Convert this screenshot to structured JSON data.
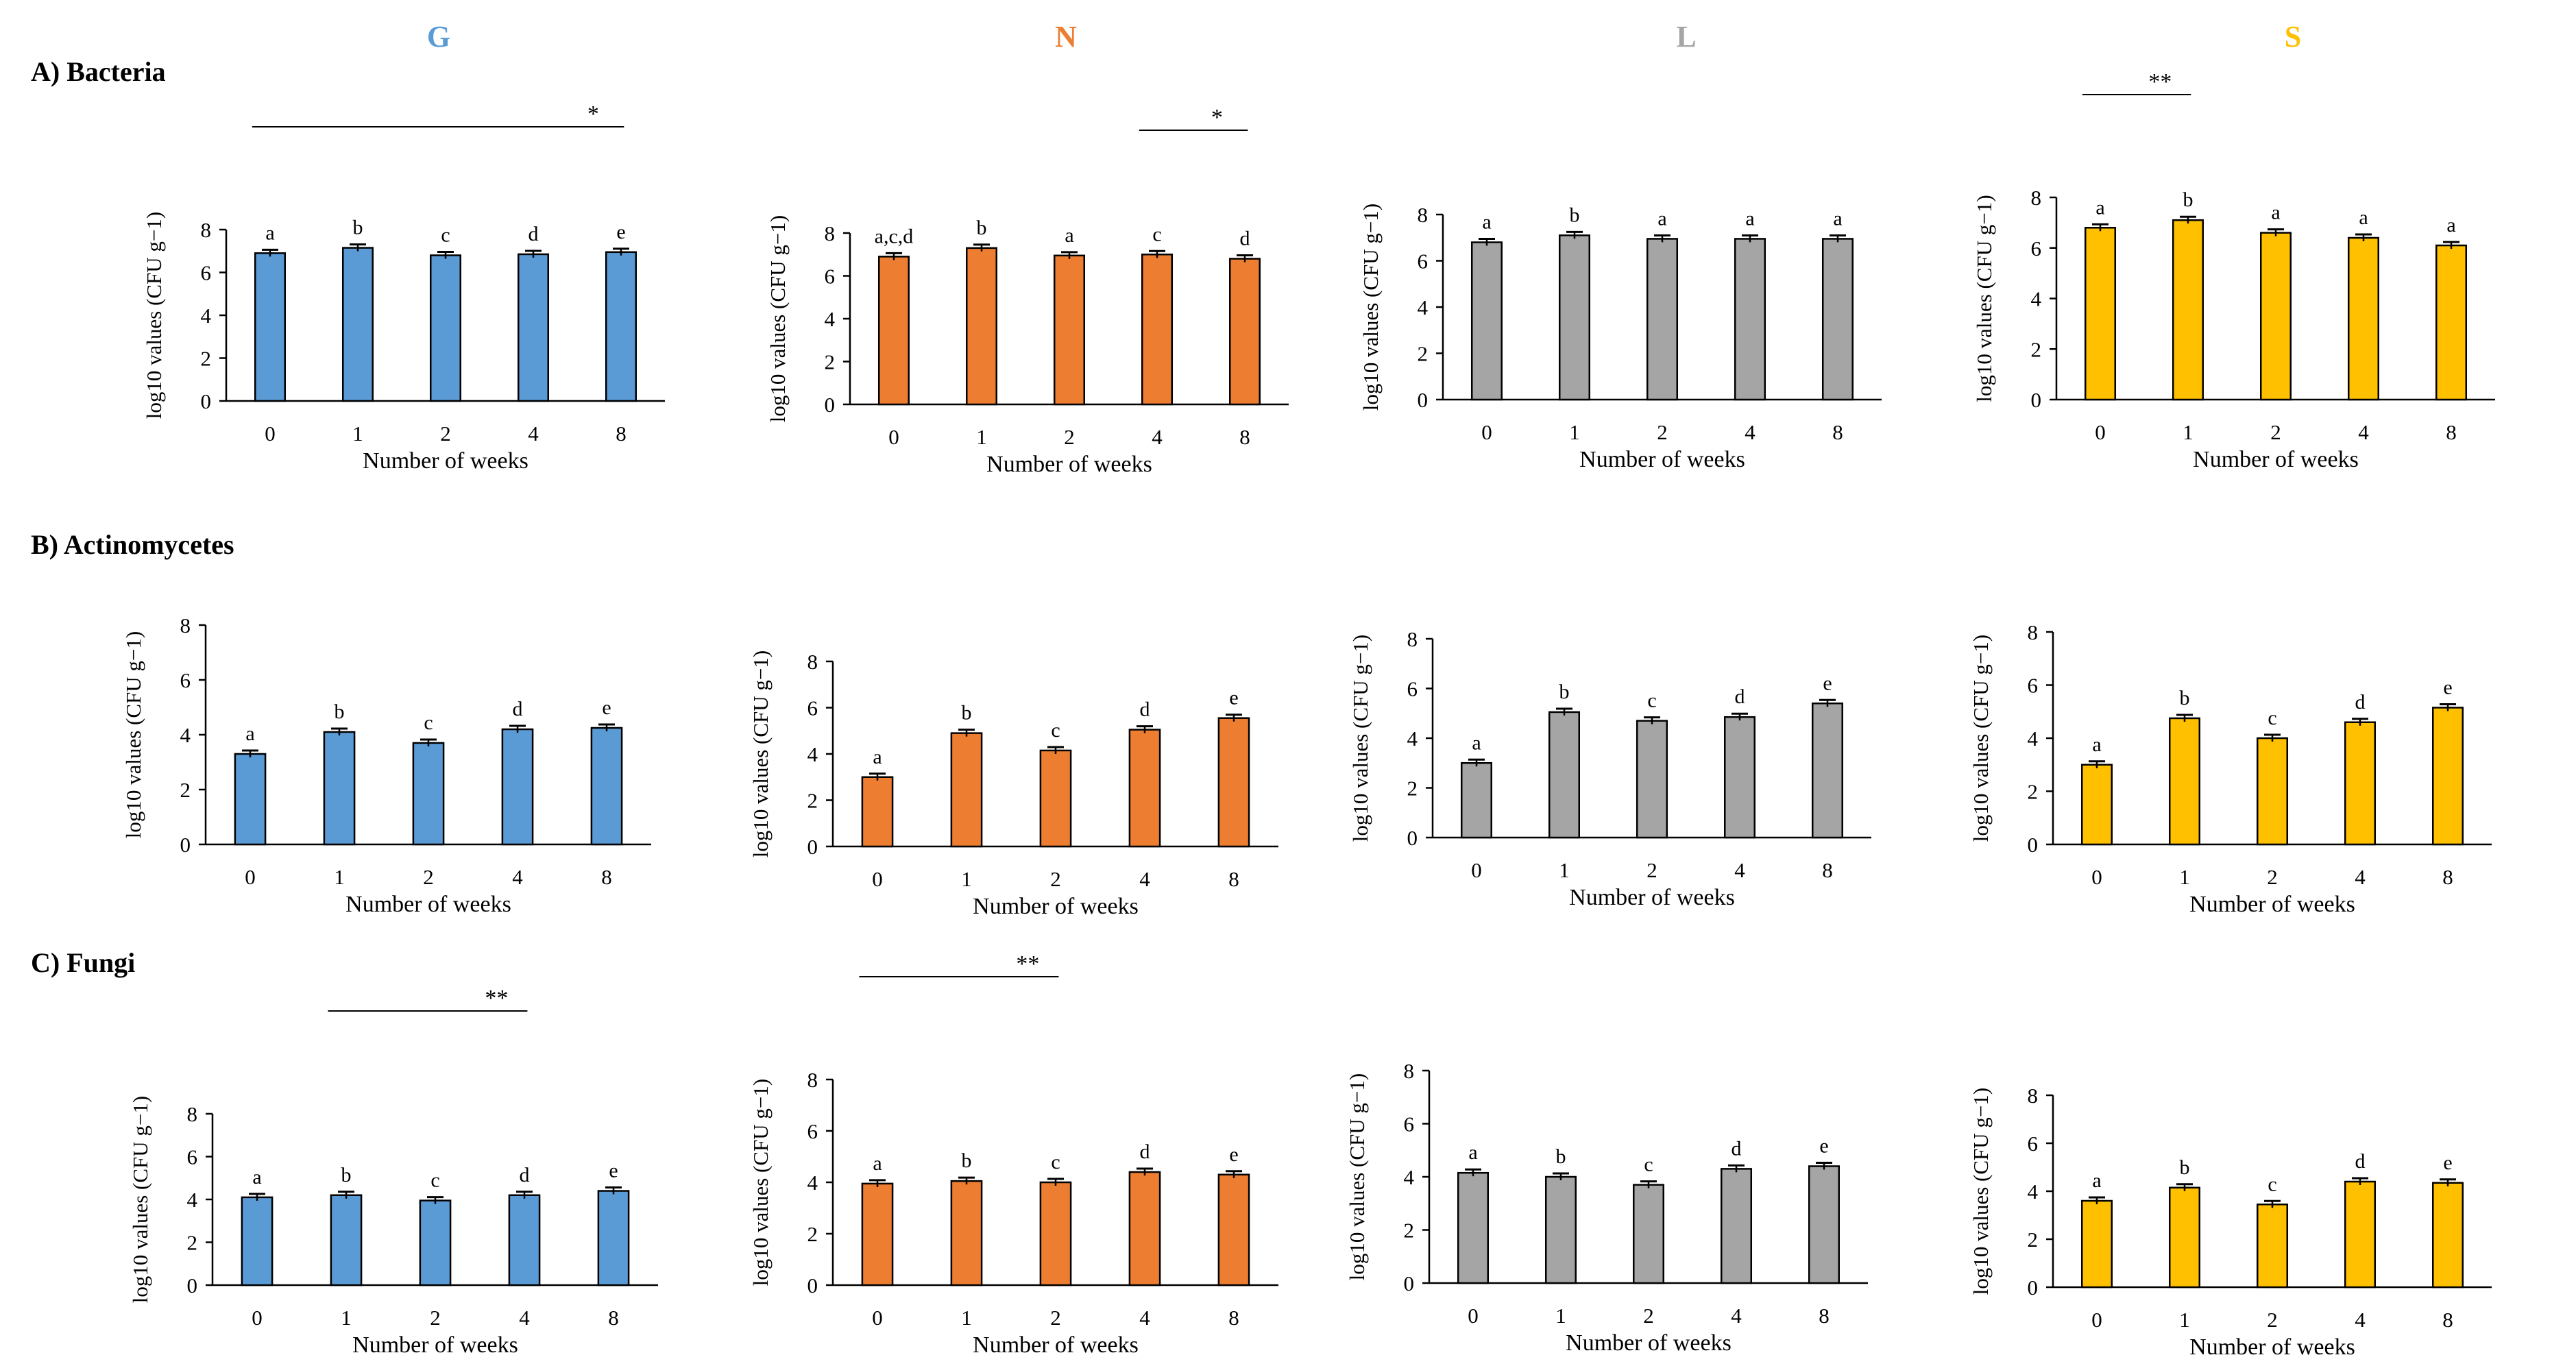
{
  "columns": [
    {
      "label": "G",
      "color": "#5B9BD5"
    },
    {
      "label": "N",
      "color": "#ED7D31"
    },
    {
      "label": "L",
      "color": "#A5A5A5"
    },
    {
      "label": "S",
      "color": "#FFC000"
    }
  ],
  "rows": [
    {
      "label": "A) Bacteria"
    },
    {
      "label": "B) Actinomycetes"
    },
    {
      "label": "C) Fungi"
    }
  ],
  "chart_data": [
    {
      "type": "bar",
      "row": 0,
      "col": 0,
      "series_color": "#5B9BD5",
      "categories": [
        "0",
        "1",
        "2",
        "4",
        "8"
      ],
      "values": [
        6.9,
        7.15,
        6.8,
        6.85,
        6.95
      ],
      "letters": [
        "a",
        "b",
        "c",
        "d",
        "e"
      ],
      "ylim": [
        0,
        8
      ],
      "yticks": [
        0,
        2,
        4,
        6,
        8
      ],
      "xlabel": "Number of weeks",
      "ylabel": "log10 values (CFU g−1)",
      "significance": {
        "from": 0,
        "to": 4,
        "label": "*"
      }
    },
    {
      "type": "bar",
      "row": 0,
      "col": 1,
      "series_color": "#ED7D31",
      "categories": [
        "0",
        "1",
        "2",
        "4",
        "8"
      ],
      "values": [
        6.9,
        7.3,
        6.95,
        7.0,
        6.8
      ],
      "letters": [
        "a,c,d",
        "b",
        "a",
        "c",
        "d"
      ],
      "ylim": [
        0,
        8
      ],
      "yticks": [
        0,
        2,
        4,
        6,
        8
      ],
      "xlabel": "Number of weeks",
      "ylabel": "log10 values (CFU g−1)",
      "significance": {
        "from": 3,
        "to": 4,
        "label": "*"
      }
    },
    {
      "type": "bar",
      "row": 0,
      "col": 2,
      "series_color": "#A5A5A5",
      "categories": [
        "0",
        "1",
        "2",
        "4",
        "8"
      ],
      "values": [
        6.8,
        7.1,
        6.95,
        6.95,
        6.95
      ],
      "letters": [
        "a",
        "b",
        "a",
        "a",
        "a"
      ],
      "ylim": [
        0,
        8
      ],
      "yticks": [
        0,
        2,
        4,
        6,
        8
      ],
      "xlabel": "Number of weeks",
      "ylabel": "log10 values (CFU g−1)",
      "significance": null
    },
    {
      "type": "bar",
      "row": 0,
      "col": 3,
      "series_color": "#FFC000",
      "categories": [
        "0",
        "1",
        "2",
        "4",
        "8"
      ],
      "values": [
        6.8,
        7.1,
        6.6,
        6.4,
        6.1
      ],
      "letters": [
        "a",
        "b",
        "a",
        "a",
        "a"
      ],
      "ylim": [
        0,
        8
      ],
      "yticks": [
        0,
        2,
        4,
        6,
        8
      ],
      "xlabel": "Number of weeks",
      "ylabel": "log10 values (CFU g−1)",
      "significance": {
        "from": 0,
        "to": 1,
        "label": "**"
      }
    },
    {
      "type": "bar",
      "row": 1,
      "col": 0,
      "series_color": "#5B9BD5",
      "categories": [
        "0",
        "1",
        "2",
        "4",
        "8"
      ],
      "values": [
        3.3,
        4.1,
        3.7,
        4.2,
        4.25
      ],
      "letters": [
        "a",
        "b",
        "c",
        "d",
        "e"
      ],
      "ylim": [
        0,
        8
      ],
      "yticks": [
        0,
        2,
        4,
        6,
        8
      ],
      "xlabel": "Number of weeks",
      "ylabel": "log10 values (CFU g−1)",
      "significance": null
    },
    {
      "type": "bar",
      "row": 1,
      "col": 1,
      "series_color": "#ED7D31",
      "categories": [
        "0",
        "1",
        "2",
        "4",
        "8"
      ],
      "values": [
        3.0,
        4.9,
        4.15,
        5.05,
        5.55
      ],
      "letters": [
        "a",
        "b",
        "c",
        "d",
        "e"
      ],
      "ylim": [
        0,
        8
      ],
      "yticks": [
        0,
        2,
        4,
        6,
        8
      ],
      "xlabel": "Number of weeks",
      "ylabel": "log10 values (CFU g−1)",
      "significance": null
    },
    {
      "type": "bar",
      "row": 1,
      "col": 2,
      "series_color": "#A5A5A5",
      "categories": [
        "0",
        "1",
        "2",
        "4",
        "8"
      ],
      "values": [
        3.0,
        5.05,
        4.7,
        4.85,
        5.4
      ],
      "letters": [
        "a",
        "b",
        "c",
        "d",
        "e"
      ],
      "ylim": [
        0,
        8
      ],
      "yticks": [
        0,
        2,
        4,
        6,
        8
      ],
      "xlabel": "Number of weeks",
      "ylabel": "log10 values (CFU g−1)",
      "significance": null
    },
    {
      "type": "bar",
      "row": 1,
      "col": 3,
      "series_color": "#FFC000",
      "categories": [
        "0",
        "1",
        "2",
        "4",
        "8"
      ],
      "values": [
        3.0,
        4.75,
        4.0,
        4.6,
        5.15
      ],
      "letters": [
        "a",
        "b",
        "c",
        "d",
        "e"
      ],
      "ylim": [
        0,
        8
      ],
      "yticks": [
        0,
        2,
        4,
        6,
        8
      ],
      "xlabel": "Number of weeks",
      "ylabel": "log10 values (CFU g−1)",
      "significance": null
    },
    {
      "type": "bar",
      "row": 2,
      "col": 0,
      "series_color": "#5B9BD5",
      "categories": [
        "0",
        "1",
        "2",
        "4",
        "8"
      ],
      "values": [
        4.1,
        4.2,
        3.95,
        4.2,
        4.4
      ],
      "letters": [
        "a",
        "b",
        "c",
        "d",
        "e"
      ],
      "ylim": [
        0,
        8
      ],
      "yticks": [
        0,
        2,
        4,
        6,
        8
      ],
      "xlabel": "Number of weeks",
      "ylabel": "log10 values (CFU g−1)",
      "significance": {
        "from": 1,
        "to": 3,
        "label": "**"
      }
    },
    {
      "type": "bar",
      "row": 2,
      "col": 1,
      "series_color": "#ED7D31",
      "categories": [
        "0",
        "1",
        "2",
        "4",
        "8"
      ],
      "values": [
        3.95,
        4.05,
        4.0,
        4.4,
        4.3
      ],
      "letters": [
        "a",
        "b",
        "c",
        "d",
        "e"
      ],
      "ylim": [
        0,
        8
      ],
      "yticks": [
        0,
        2,
        4,
        6,
        8
      ],
      "xlabel": "Number of weeks",
      "ylabel": "log10 values (CFU g−1)",
      "significance": {
        "from": 0,
        "to": 2,
        "label": "**"
      }
    },
    {
      "type": "bar",
      "row": 2,
      "col": 2,
      "series_color": "#A5A5A5",
      "categories": [
        "0",
        "1",
        "2",
        "4",
        "8"
      ],
      "values": [
        4.15,
        4.0,
        3.7,
        4.3,
        4.4
      ],
      "letters": [
        "a",
        "b",
        "c",
        "d",
        "e"
      ],
      "ylim": [
        0,
        8
      ],
      "yticks": [
        0,
        2,
        4,
        6,
        8
      ],
      "xlabel": "Number of weeks",
      "ylabel": "log10 values (CFU g−1)",
      "significance": null
    },
    {
      "type": "bar",
      "row": 2,
      "col": 3,
      "series_color": "#FFC000",
      "categories": [
        "0",
        "1",
        "2",
        "4",
        "8"
      ],
      "values": [
        3.6,
        4.15,
        3.45,
        4.4,
        4.35
      ],
      "letters": [
        "a",
        "b",
        "c",
        "d",
        "e"
      ],
      "ylim": [
        0,
        8
      ],
      "yticks": [
        0,
        2,
        4,
        6,
        8
      ],
      "xlabel": "Number of weeks",
      "ylabel": "log10 values (CFU g−1)",
      "significance": null
    }
  ]
}
